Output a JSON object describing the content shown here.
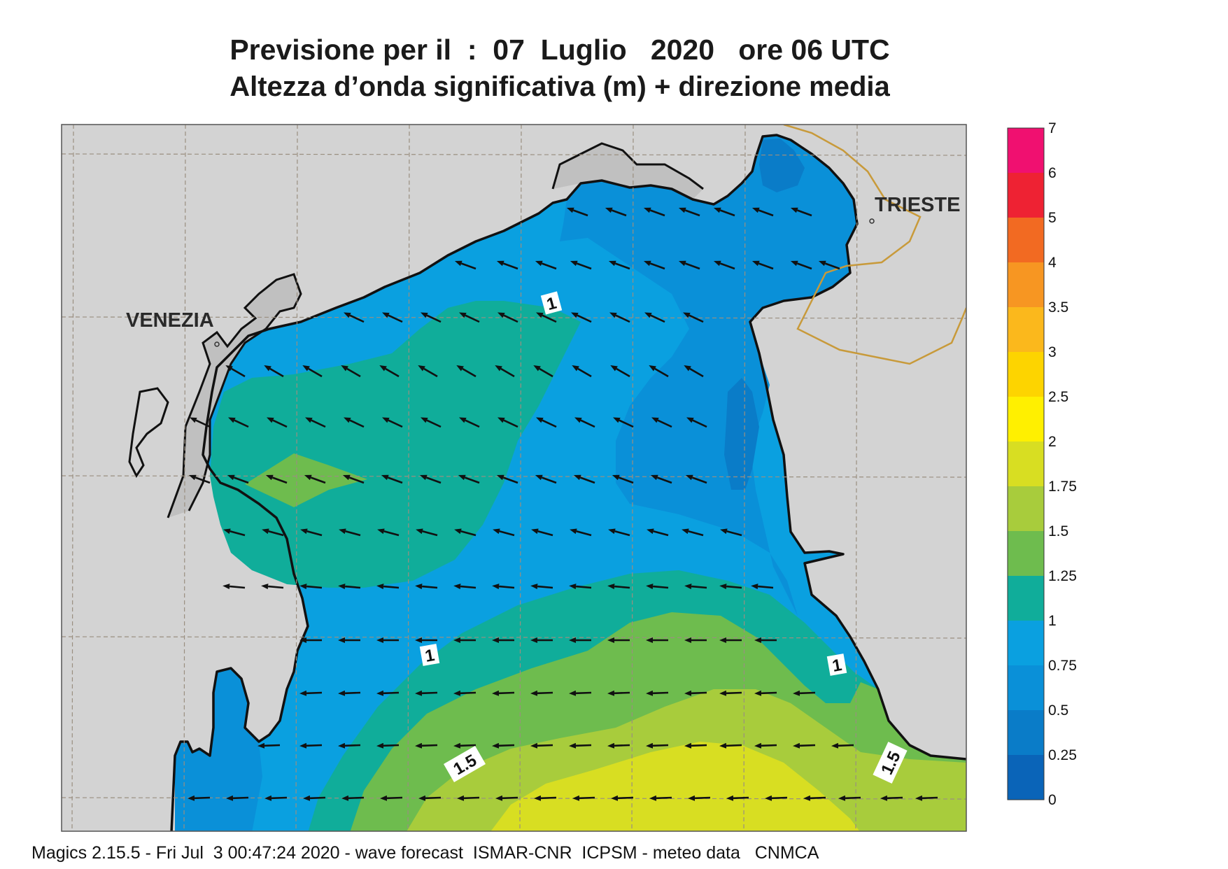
{
  "title": {
    "line1": "Previsione per il  :  07  Luglio   2020   ore 06 UTC",
    "line2": "Altezza d’onda significativa (m) + direzione media"
  },
  "map": {
    "cities": [
      {
        "name": "VENEZIA"
      },
      {
        "name": "TRIESTE"
      }
    ],
    "contour_labels": [
      "1",
      "1",
      "1",
      "1.5",
      "1.5"
    ],
    "colors": {
      "land": "#d3d3d3",
      "coast": "#111111",
      "border": "#c89a3a",
      "grid": "#9a8f80"
    }
  },
  "colorbar": {
    "ticks": [
      "7",
      "6",
      "5",
      "4",
      "3.5",
      "3",
      "2.5",
      "2",
      "1.75",
      "1.5",
      "1.25",
      "1",
      "0.75",
      "0.5",
      "0.25",
      "0"
    ],
    "colors": [
      "#f01070",
      "#ee2233",
      "#f26a22",
      "#f79622",
      "#fbb81c",
      "#fdd400",
      "#fff000",
      "#d8de22",
      "#a8cc3c",
      "#6ebc4e",
      "#10ad9a",
      "#0aa0e0",
      "#0a90d8",
      "#0a7cc8",
      "#0a64b8"
    ]
  },
  "footer": "Magics 2.15.5 - Fri Jul  3 00:47:24 2020 - wave forecast  ISMAR-CNR  ICPSM - meteo data   CNMCA"
}
